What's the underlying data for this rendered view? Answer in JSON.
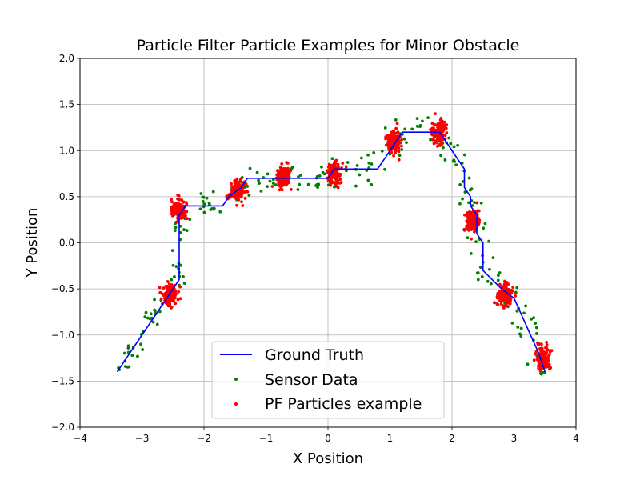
{
  "chart_data": {
    "type": "scatter",
    "title": "Particle Filter Particle Examples for Minor Obstacle",
    "xlabel": "X Position",
    "ylabel": "Y Position",
    "xlim": [
      -4,
      4
    ],
    "ylim": [
      -2,
      2
    ],
    "xticks": [
      -4,
      -3,
      -2,
      -1,
      0,
      1,
      2,
      3,
      4
    ],
    "yticks": [
      -2.0,
      -1.5,
      -1.0,
      -0.5,
      0.0,
      0.5,
      1.0,
      1.5,
      2.0
    ],
    "xtick_labels": [
      "−4",
      "−3",
      "−2",
      "−1",
      "0",
      "1",
      "2",
      "3",
      "4"
    ],
    "ytick_labels": [
      "−2.0",
      "−1.5",
      "−1.0",
      "−0.5",
      "0.0",
      "0.5",
      "1.0",
      "1.5",
      "2.0"
    ],
    "grid": true,
    "legend_position": "lower-center",
    "series": [
      {
        "name": "Ground Truth",
        "kind": "line",
        "color": "#0000ff",
        "x": [
          -3.4,
          -3.0,
          -2.6,
          -2.4,
          -2.4,
          -2.3,
          -2.0,
          -1.7,
          -1.6,
          -1.4,
          -1.3,
          -1.0,
          -0.8,
          -0.6,
          -0.5,
          0.0,
          0.1,
          0.2,
          0.5,
          0.8,
          1.1,
          1.2,
          1.5,
          1.8,
          2.0,
          2.2,
          2.2,
          2.3,
          2.3,
          2.4,
          2.4,
          2.5,
          2.5,
          2.8,
          3.0,
          3.4,
          3.5
        ],
        "y": [
          -1.4,
          -1.0,
          -0.6,
          -0.4,
          0.3,
          0.4,
          0.4,
          0.4,
          0.5,
          0.6,
          0.7,
          0.7,
          0.7,
          0.7,
          0.7,
          0.7,
          0.8,
          0.8,
          0.8,
          0.8,
          1.1,
          1.2,
          1.2,
          1.2,
          1.0,
          0.8,
          0.6,
          0.5,
          0.4,
          0.3,
          0.1,
          0.0,
          -0.3,
          -0.5,
          -0.6,
          -1.2,
          -1.4
        ]
      },
      {
        "name": "Sensor Data",
        "kind": "scatter",
        "color": "#008000"
      },
      {
        "name": "PF Particles example",
        "kind": "scatter",
        "color": "#ff0000",
        "clusters": [
          {
            "x": -2.55,
            "y": -0.57
          },
          {
            "x": -2.42,
            "y": 0.35
          },
          {
            "x": -1.45,
            "y": 0.57
          },
          {
            "x": -0.72,
            "y": 0.72
          },
          {
            "x": 0.1,
            "y": 0.75
          },
          {
            "x": 1.05,
            "y": 1.1
          },
          {
            "x": 1.8,
            "y": 1.2
          },
          {
            "x": 2.33,
            "y": 0.23
          },
          {
            "x": 2.85,
            "y": -0.58
          },
          {
            "x": 3.47,
            "y": -1.25
          }
        ]
      }
    ]
  }
}
